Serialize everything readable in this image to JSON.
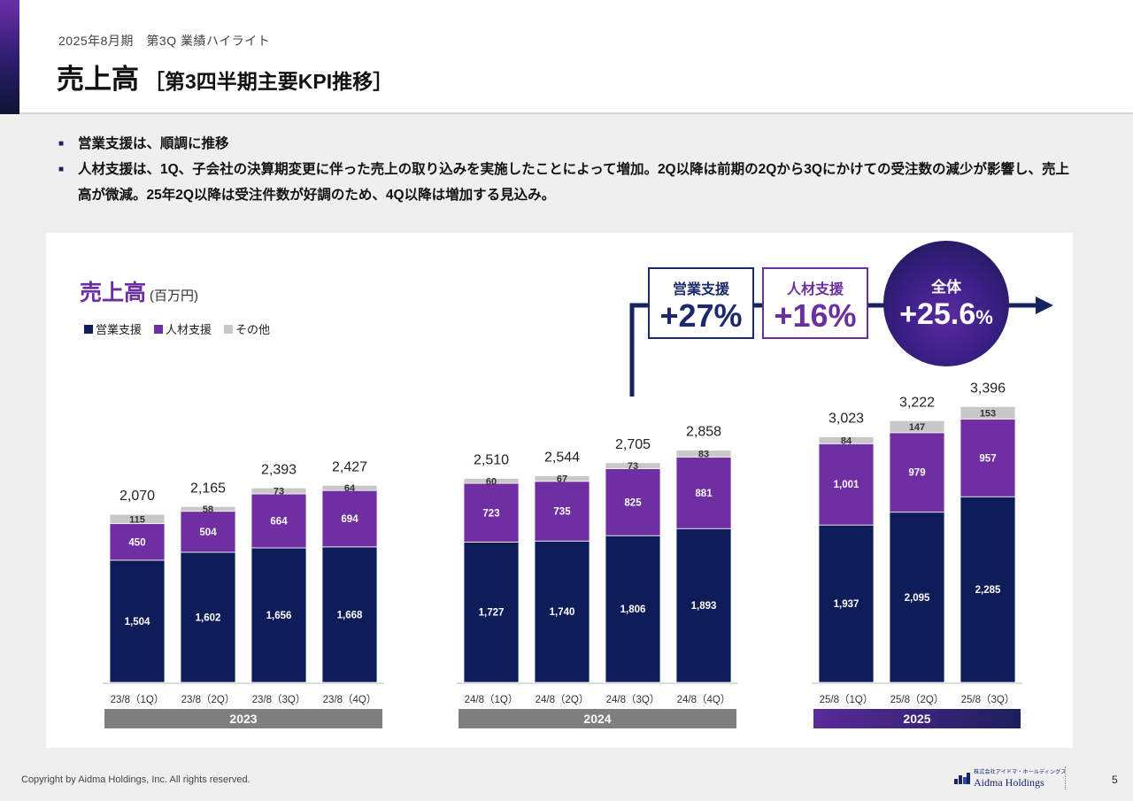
{
  "header": {
    "subtitle": "2025年8月期　第3Q 業績ハイライト",
    "title": "売上高",
    "title_sub": "［第3四半期主要KPI推移］"
  },
  "bullets": [
    "営業支援は、順調に推移",
    "人材支援は、1Q、子会社の決算期変更に伴った売上の取り込みを実施したことによって増加。2Q以降は前期の2Qから3Qにかけての受注数の減少が影響し、売上高が微減。25年2Q以降は受注件数が好調のため、4Q以降は増加する見込み。"
  ],
  "chart_header": {
    "title": "売上高",
    "unit": "(百万円)"
  },
  "badges": {
    "sales": {
      "label": "営業支援",
      "value": "+27%"
    },
    "hr": {
      "label": "人材支援",
      "value": "+16%"
    },
    "total": {
      "label": "全体",
      "value": "+25.6",
      "pct": "%"
    }
  },
  "colors": {
    "sales": "#0f1c5a",
    "hr": "#6f2fa2",
    "other": "#c8c8c8",
    "year_gray": "#7f7f7f",
    "year_2025": "#4a2788"
  },
  "chart_data": {
    "type": "bar",
    "stacked": true,
    "categories": [
      "23/8（1Q）",
      "23/8（2Q）",
      "23/8（3Q）",
      "23/8（4Q）",
      "24/8（1Q）",
      "24/8（2Q）",
      "24/8（3Q）",
      "24/8（4Q）",
      "25/8（1Q）",
      "25/8（2Q）",
      "25/8（3Q）"
    ],
    "series": [
      {
        "name": "営業支援",
        "values": [
          1504,
          1602,
          1656,
          1668,
          1727,
          1740,
          1806,
          1893,
          1937,
          2095,
          2285
        ]
      },
      {
        "name": "人材支援",
        "values": [
          450,
          504,
          664,
          694,
          723,
          735,
          825,
          881,
          1001,
          979,
          957
        ]
      },
      {
        "name": "その他",
        "values": [
          115,
          58,
          73,
          64,
          60,
          67,
          73,
          83,
          84,
          147,
          153
        ]
      }
    ],
    "value_labels": [
      [
        "1,504",
        "1,602",
        "1,656",
        "1,668",
        "1,727",
        "1,740",
        "1,806",
        "1,893",
        "1,937",
        "2,095",
        "2,285"
      ],
      [
        "450",
        "504",
        "664",
        "694",
        "723",
        "735",
        "825",
        "881",
        "1,001",
        "979",
        "957"
      ],
      [
        "115",
        "58",
        "73",
        "64",
        "60",
        "67",
        "73",
        "83",
        "84",
        "147",
        "153"
      ]
    ],
    "totals": [
      "2,070",
      "2,165",
      "2,393",
      "2,427",
      "2,510",
      "2,544",
      "2,705",
      "2,858",
      "3,023",
      "3,222",
      "3,396"
    ],
    "groups": [
      {
        "label": "2023",
        "first": 0,
        "last": 3
      },
      {
        "label": "2024",
        "first": 4,
        "last": 7
      },
      {
        "label": "2025",
        "first": 8,
        "last": 10
      }
    ],
    "legend": [
      "営業支援",
      "人材支援",
      "その他"
    ],
    "legend_position": "top-left",
    "ylim": [
      0,
      3500
    ],
    "grid": false
  },
  "footer": {
    "copyright": "Copyright by Aidma Holdings, Inc. All rights reserved.",
    "logo_small": "株式会社アイドマ・ホールディングス",
    "logo_text": "Aidma Holdings",
    "page": "5"
  }
}
